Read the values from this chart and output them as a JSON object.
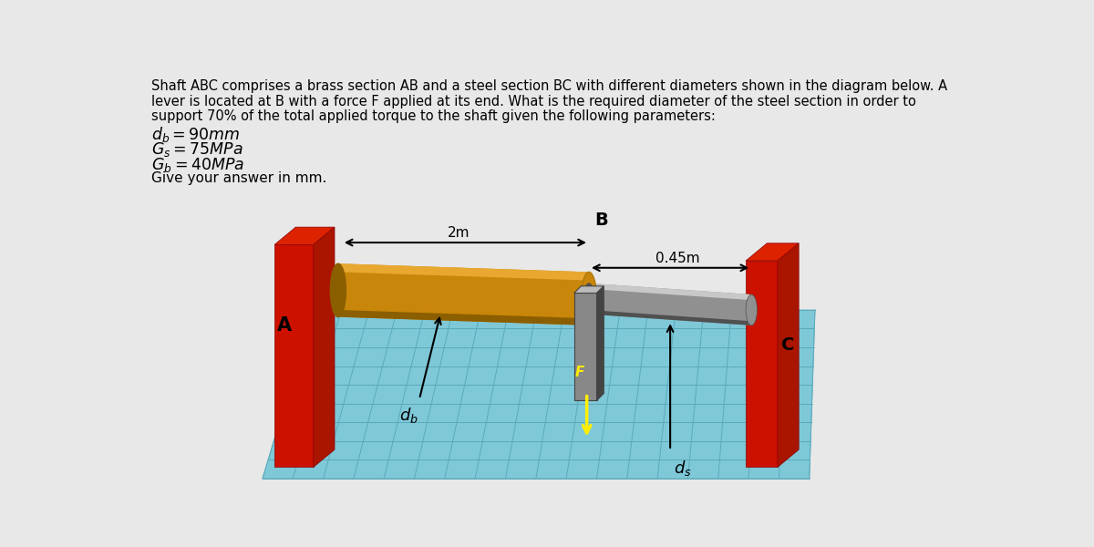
{
  "bg_color": "#e8e8e8",
  "title_lines": [
    "Shaft ABC comprises a brass section AB and a steel section BC with different diameters shown in the diagram below. A",
    "lever is located at B with a force F applied at its end. What is the required diameter of the steel section in order to",
    "support 70% of the total applied torque to the shaft given the following parameters:"
  ],
  "params": [
    "d_b = 90mm",
    "G_s = 75MPa",
    "G_b = 40MPa",
    "Give your answer in mm."
  ],
  "red_color": "#CC1100",
  "red_dark": "#880000",
  "red_side": "#AA1500",
  "red_top": "#DD2200",
  "brass_main": "#C8860A",
  "brass_top": "#E8A830",
  "brass_dark": "#8B5E00",
  "brass_side": "#B07808",
  "steel_main": "#909090",
  "steel_top": "#C8C8C8",
  "steel_dark": "#505050",
  "lever_main": "#888888",
  "lever_dark": "#444444",
  "lever_light": "#BBBBBB",
  "floor_main": "#7EC8D8",
  "floor_grid": "#5AAABB",
  "floor_dark": "#60A0B0",
  "bg_diagram": "#d8d8d8",
  "yellow": "#FFEE00",
  "black": "#000000",
  "white": "#ffffff"
}
